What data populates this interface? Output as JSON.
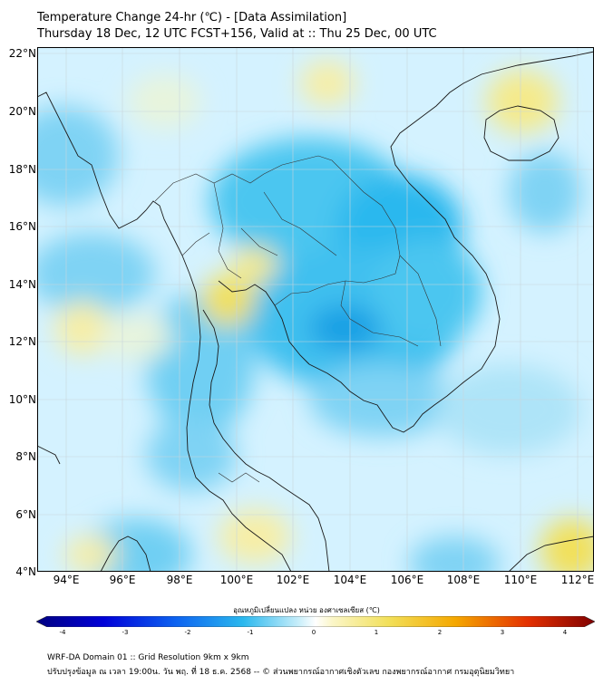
{
  "title": {
    "line1": "Temperature Change 24-hr (℃) - [Data Assimilation]",
    "line2": "Thursday 18 Dec, 12 UTC FCST+156, Valid at :: Thu 25 Dec, 00 UTC"
  },
  "map": {
    "lat_labels": [
      "22°N",
      "20°N",
      "18°N",
      "16°N",
      "14°N",
      "12°N",
      "10°N",
      "8°N",
      "6°N",
      "4°N"
    ],
    "lon_labels": [
      "94°E",
      "96°E",
      "98°E",
      "100°E",
      "102°E",
      "104°E",
      "106°E",
      "108°E",
      "110°E",
      "112°E"
    ],
    "colors": {
      "background": "#d4f2ff",
      "cool": "#2ab8ee",
      "warm": "#f2e05a",
      "coast": "#111111"
    }
  },
  "colorbar": {
    "label": "อุณหภูมิเปลี่ยนแปลง หน่วย องศาเซลเซียส (℃)",
    "ticks": [
      "-4",
      "-3",
      "-2",
      "-1",
      "0",
      "1",
      "2",
      "3",
      "4"
    ]
  },
  "footer": {
    "line1": "WRF-DA Domain 01 :: Grid Resolution 9km x 9km",
    "line2": "ปรับปรุงข้อมูล ณ เวลา 19:00น. วัน พฤ. ที่ 18 ธ.ค. 2568 -- © ส่วนพยากรณ์อากาศเชิงตัวเลข กองพยากรณ์อากาศ กรมอุตุนิยมวิทยา"
  }
}
